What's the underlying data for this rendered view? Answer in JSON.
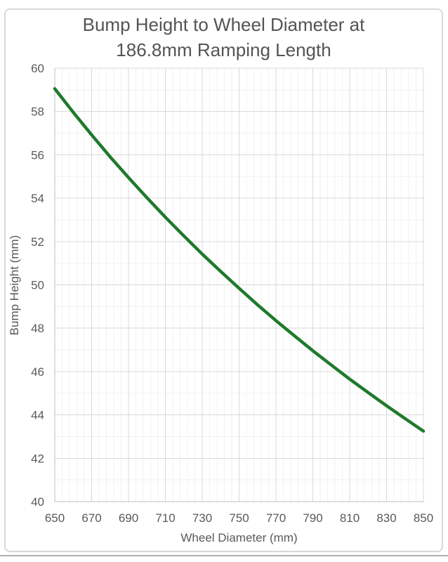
{
  "chart_data": {
    "type": "line",
    "title_lines": [
      "Bump Height to Wheel Diameter at",
      "186.8mm Ramping Length"
    ],
    "xlabel": "Wheel Diameter (mm)",
    "ylabel": "Bump Height (mm)",
    "xlim": [
      650,
      850
    ],
    "ylim": [
      40,
      60
    ],
    "x_major_step": 20,
    "x_minor_step": 4,
    "y_major_step": 2,
    "y_minor_step": 1,
    "xticks": [
      650,
      670,
      690,
      710,
      730,
      750,
      770,
      790,
      810,
      830,
      850
    ],
    "yticks": [
      40,
      42,
      44,
      46,
      48,
      50,
      52,
      54,
      56,
      58,
      60
    ],
    "grid": "major+minor",
    "legend": "none",
    "series": [
      {
        "name": "Bump Height",
        "color": "#1e7a2b",
        "x": [
          650,
          660,
          670,
          680,
          690,
          700,
          710,
          720,
          730,
          740,
          750,
          760,
          770,
          780,
          790,
          800,
          810,
          820,
          830,
          840,
          850
        ],
        "y": [
          59.05,
          57.96,
          56.92,
          55.91,
          54.95,
          54.02,
          53.12,
          52.26,
          51.42,
          50.62,
          49.84,
          49.08,
          48.35,
          47.65,
          46.96,
          46.3,
          45.65,
          45.03,
          44.42,
          43.83,
          43.25
        ]
      }
    ]
  },
  "colors": {
    "series_green": "#1e7a2b",
    "grid_major": "#d9d9d9",
    "grid_minor": "#f2f2f2",
    "axis_line": "#bfbfbf",
    "text_gray": "#595959",
    "title_gray": "#545454",
    "frame_border": "#d8d8d8",
    "separator": "#aeaeae"
  }
}
